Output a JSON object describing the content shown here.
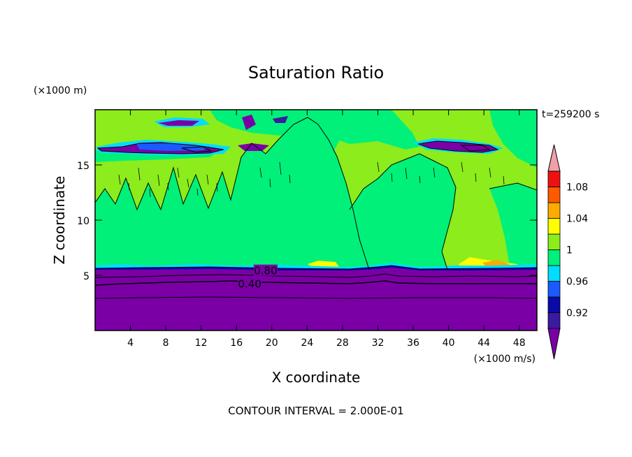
{
  "chart_data": {
    "type": "heatmap",
    "title": "Saturation Ratio",
    "xlabel": "X coordinate",
    "ylabel": "Z coordinate",
    "x_unit": "(×1000 m/s)",
    "y_unit": "(×1000 m)",
    "time_label": "t=259200 s",
    "contour_interval_label": "CONTOUR INTERVAL = 2.000E-01",
    "xlim": [
      0,
      50
    ],
    "ylim": [
      0,
      20
    ],
    "x_ticks": [
      4,
      8,
      12,
      16,
      20,
      24,
      28,
      32,
      36,
      40,
      44,
      48
    ],
    "y_ticks": [
      5,
      10,
      15
    ],
    "colorbar": {
      "levels": [
        0.9,
        0.92,
        0.94,
        0.96,
        0.98,
        1.0,
        1.02,
        1.04,
        1.06,
        1.08,
        1.1
      ],
      "colors": [
        "#7a00a6",
        "#3a1aa0",
        "#0a0aa8",
        "#1a5aff",
        "#00ddff",
        "#00f07a",
        "#8cec1c",
        "#ffff00",
        "#ffaa00",
        "#ff5a00",
        "#ee1111",
        "#f0a0a8"
      ],
      "tick_labels": [
        {
          "value": 0.92,
          "label": "0.92"
        },
        {
          "value": 0.96,
          "label": "0.96"
        },
        {
          "value": 1.0,
          "label": "1"
        },
        {
          "value": 1.04,
          "label": "1.04"
        },
        {
          "value": 1.08,
          "label": "1.08"
        }
      ]
    },
    "contour_labels": [
      {
        "x": 19.3,
        "y": 5.4,
        "label": "0.80"
      },
      {
        "x": 17.5,
        "y": 4.2,
        "label": "0.40"
      }
    ]
  }
}
